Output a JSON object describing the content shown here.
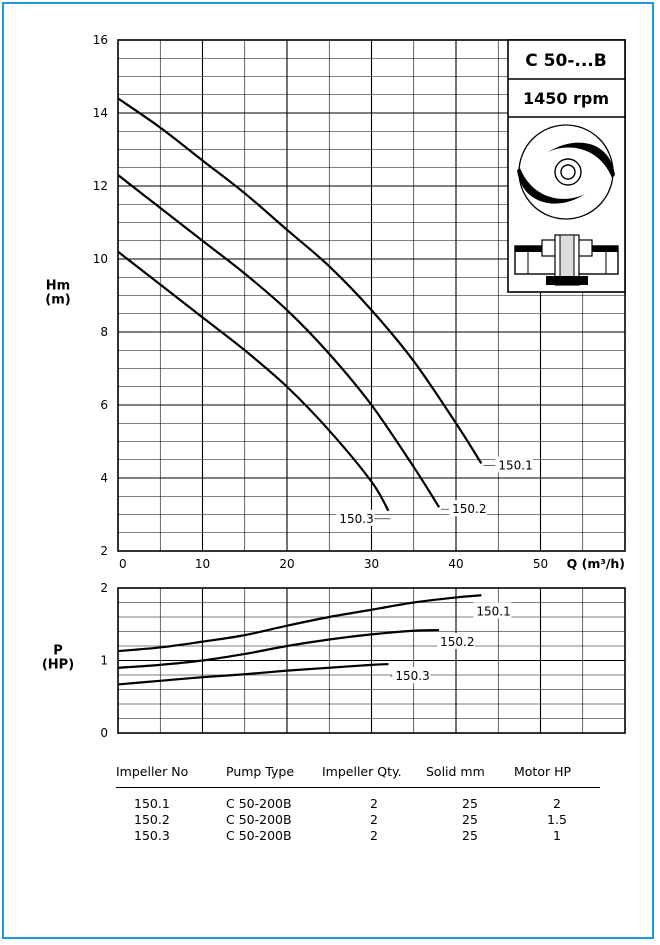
{
  "chart_data": [
    {
      "type": "line",
      "title": "C 50-...B",
      "subtitle": "1450 rpm",
      "ylabel": "Hm\n(m)",
      "xlabel": "Q (m³/h)",
      "xlim": [
        0,
        60
      ],
      "ylim": [
        2,
        16
      ],
      "xticks": [
        0,
        10,
        20,
        30,
        40,
        50
      ],
      "yticks": [
        2,
        4,
        6,
        8,
        10,
        12,
        14,
        16
      ],
      "grid": true,
      "series": [
        {
          "name": "150.1",
          "x": [
            0,
            5,
            10,
            15,
            20,
            25,
            30,
            35,
            40,
            43
          ],
          "y": [
            14.4,
            13.6,
            12.7,
            11.8,
            10.8,
            9.8,
            8.6,
            7.2,
            5.5,
            4.4
          ]
        },
        {
          "name": "150.2",
          "x": [
            0,
            5,
            10,
            15,
            20,
            25,
            30,
            35,
            38
          ],
          "y": [
            12.3,
            11.4,
            10.5,
            9.6,
            8.6,
            7.4,
            6.0,
            4.3,
            3.2
          ]
        },
        {
          "name": "150.3",
          "x": [
            0,
            5,
            10,
            15,
            20,
            25,
            30,
            32
          ],
          "y": [
            10.2,
            9.3,
            8.4,
            7.5,
            6.5,
            5.3,
            3.9,
            3.1
          ]
        }
      ]
    },
    {
      "type": "line",
      "ylabel": "P\n(HP)",
      "xlim": [
        0,
        60
      ],
      "ylim": [
        0,
        2
      ],
      "yticks": [
        0,
        1,
        2
      ],
      "grid": true,
      "series": [
        {
          "name": "150.1",
          "x": [
            0,
            5,
            10,
            15,
            20,
            25,
            30,
            35,
            40,
            43
          ],
          "y": [
            1.13,
            1.18,
            1.26,
            1.35,
            1.48,
            1.6,
            1.7,
            1.8,
            1.87,
            1.9
          ]
        },
        {
          "name": "150.2",
          "x": [
            0,
            5,
            10,
            15,
            20,
            25,
            30,
            35,
            38
          ],
          "y": [
            0.9,
            0.94,
            1.0,
            1.09,
            1.2,
            1.29,
            1.36,
            1.41,
            1.42
          ]
        },
        {
          "name": "150.3",
          "x": [
            0,
            5,
            10,
            15,
            20,
            25,
            30,
            32
          ],
          "y": [
            0.67,
            0.72,
            0.77,
            0.81,
            0.86,
            0.9,
            0.94,
            0.95
          ]
        }
      ]
    }
  ],
  "table": {
    "headers": [
      "Impeller No",
      "Pump Type",
      "Impeller Qty.",
      "Solid mm",
      "Motor HP"
    ],
    "rows": [
      [
        "150.1",
        "C 50-200B",
        "2",
        "25",
        "2"
      ],
      [
        "150.2",
        "C 50-200B",
        "2",
        "25",
        "1.5"
      ],
      [
        "150.3",
        "C 50-200B",
        "2",
        "25",
        "1"
      ]
    ]
  }
}
